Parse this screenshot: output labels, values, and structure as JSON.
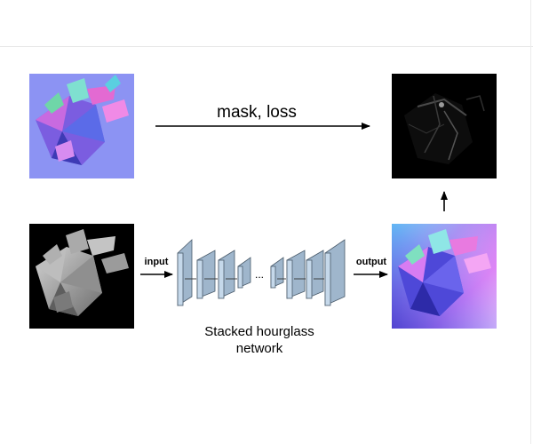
{
  "diagram": {
    "labels": {
      "mask_loss": "mask, loss",
      "input": "input",
      "output": "output",
      "network_line1": "Stacked hourglass",
      "network_line2": "network",
      "ellipsis": "..."
    },
    "images": [
      {
        "role": "input-normal-map",
        "description_color": "#8a90f0"
      },
      {
        "role": "masked-output",
        "description_color": "#000000"
      },
      {
        "role": "input-depth-map",
        "description_color": "#000000"
      },
      {
        "role": "predicted-normal-map",
        "description_color": "#b79af5"
      }
    ],
    "colors": {
      "arrow": "#000000",
      "block_front": "#c5d8ea",
      "block_side": "#9fb6cc",
      "block_edge": "#4a5b6b",
      "normal_bg": "#8c93f3",
      "pred_bg_a": "#e47cf5",
      "pred_bg_b": "#6ad7f5",
      "pred_bg_c": "#4f4ad8"
    }
  }
}
